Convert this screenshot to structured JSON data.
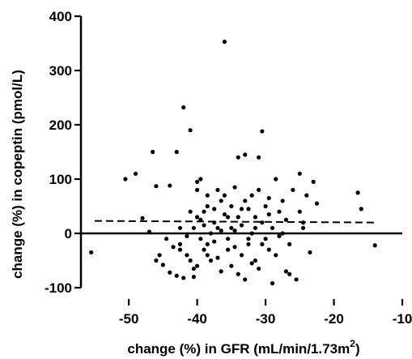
{
  "chart_data": {
    "type": "scatter",
    "xlabel_prefix": "change (%) in GFR (mL/min/1.73m",
    "xlabel_sup": "2",
    "xlabel_suffix": ")",
    "ylabel": "change (%) in copeptin (pmol/L)",
    "xlim": [
      -57,
      -10
    ],
    "ylim": [
      -100,
      400
    ],
    "x_ticks": [
      -50,
      -40,
      -30,
      -20,
      -10
    ],
    "y_ticks": [
      -100,
      0,
      100,
      200,
      300,
      400
    ],
    "grid": false,
    "trend_line": {
      "x": [
        -55,
        -14
      ],
      "y": [
        23,
        20
      ],
      "style": "dashed"
    },
    "points": [
      [
        -55.5,
        -35
      ],
      [
        -50.5,
        100
      ],
      [
        -49,
        110
      ],
      [
        -48,
        28
      ],
      [
        -46.5,
        150
      ],
      [
        -46,
        87
      ],
      [
        -46,
        -50
      ],
      [
        -45,
        -58
      ],
      [
        -44.5,
        -10
      ],
      [
        -44,
        -72
      ],
      [
        -44,
        88
      ],
      [
        -43,
        150
      ],
      [
        -42.5,
        -20
      ],
      [
        -42.5,
        -30
      ],
      [
        -42,
        232
      ],
      [
        -42,
        -82
      ],
      [
        -41.5,
        -40
      ],
      [
        -41,
        190
      ],
      [
        -41,
        -50
      ],
      [
        -41,
        40
      ],
      [
        -40.5,
        10
      ],
      [
        -40.5,
        -80
      ],
      [
        -40,
        95
      ],
      [
        -40,
        80
      ],
      [
        -40,
        -60
      ],
      [
        -40,
        30
      ],
      [
        -39.5,
        100
      ],
      [
        -39.5,
        -10
      ],
      [
        -39,
        40
      ],
      [
        -39,
        15
      ],
      [
        -39,
        -30
      ],
      [
        -38.5,
        50
      ],
      [
        -38.5,
        70
      ],
      [
        -38.5,
        -20
      ],
      [
        -38,
        -50
      ],
      [
        -38,
        0
      ],
      [
        -37.5,
        20
      ],
      [
        -37.5,
        45
      ],
      [
        -37,
        -45
      ],
      [
        -37,
        10
      ],
      [
        -36.5,
        60
      ],
      [
        -36.5,
        -70
      ],
      [
        -36,
        353
      ],
      [
        -36,
        70
      ],
      [
        -36,
        35
      ],
      [
        -35.5,
        -10
      ],
      [
        -35.5,
        -30
      ],
      [
        -35,
        50
      ],
      [
        -35,
        10
      ],
      [
        -35,
        -60
      ],
      [
        -34.5,
        85
      ],
      [
        -34.5,
        5
      ],
      [
        -34,
        -75
      ],
      [
        -34,
        30
      ],
      [
        -33.5,
        -40
      ],
      [
        -33.5,
        15
      ],
      [
        -33,
        145
      ],
      [
        -33,
        60
      ],
      [
        -33,
        -85
      ],
      [
        -32.5,
        45
      ],
      [
        -32.5,
        -20
      ],
      [
        -32,
        70
      ],
      [
        -32,
        0
      ],
      [
        -31.5,
        -50
      ],
      [
        -31.5,
        30
      ],
      [
        -31,
        140
      ],
      [
        -31,
        80
      ],
      [
        -31,
        -65
      ],
      [
        -30.5,
        188
      ],
      [
        -30.5,
        20
      ],
      [
        -30,
        -10
      ],
      [
        -30,
        50
      ],
      [
        -29.5,
        -30
      ],
      [
        -29.5,
        65
      ],
      [
        -29,
        -92
      ],
      [
        -29,
        10
      ],
      [
        -28.5,
        100
      ],
      [
        -28.5,
        -40
      ],
      [
        -28,
        40
      ],
      [
        -28,
        -5
      ],
      [
        -27.5,
        0
      ],
      [
        -27,
        -70
      ],
      [
        -27,
        25
      ],
      [
        -26.5,
        -20
      ],
      [
        -26,
        80
      ],
      [
        -25.5,
        -85
      ],
      [
        -25,
        110
      ],
      [
        -25,
        40
      ],
      [
        -24.5,
        10
      ],
      [
        -24,
        70
      ],
      [
        -23.5,
        -35
      ],
      [
        -23,
        95
      ],
      [
        -22.5,
        55
      ],
      [
        -16.5,
        75
      ],
      [
        -16,
        45
      ],
      [
        -14,
        -22
      ],
      [
        -47,
        3
      ],
      [
        -45.5,
        -40
      ],
      [
        -43.5,
        -25
      ],
      [
        -42.5,
        10
      ],
      [
        -41.5,
        -5
      ],
      [
        -40.5,
        -65
      ],
      [
        -39.5,
        25
      ],
      [
        -38.5,
        -40
      ],
      [
        -37.5,
        -15
      ],
      [
        -36.5,
        5
      ],
      [
        -35.5,
        30
      ],
      [
        -34.5,
        -25
      ],
      [
        -33.5,
        45
      ],
      [
        -32.5,
        -10
      ],
      [
        -31.5,
        10
      ],
      [
        -30.5,
        -20
      ],
      [
        -29.5,
        35
      ],
      [
        -27.5,
        60
      ],
      [
        -26.5,
        -75
      ],
      [
        -24.5,
        20
      ],
      [
        -43,
        -78
      ],
      [
        -37,
        80
      ],
      [
        -34,
        140
      ],
      [
        -32,
        -55
      ]
    ]
  }
}
